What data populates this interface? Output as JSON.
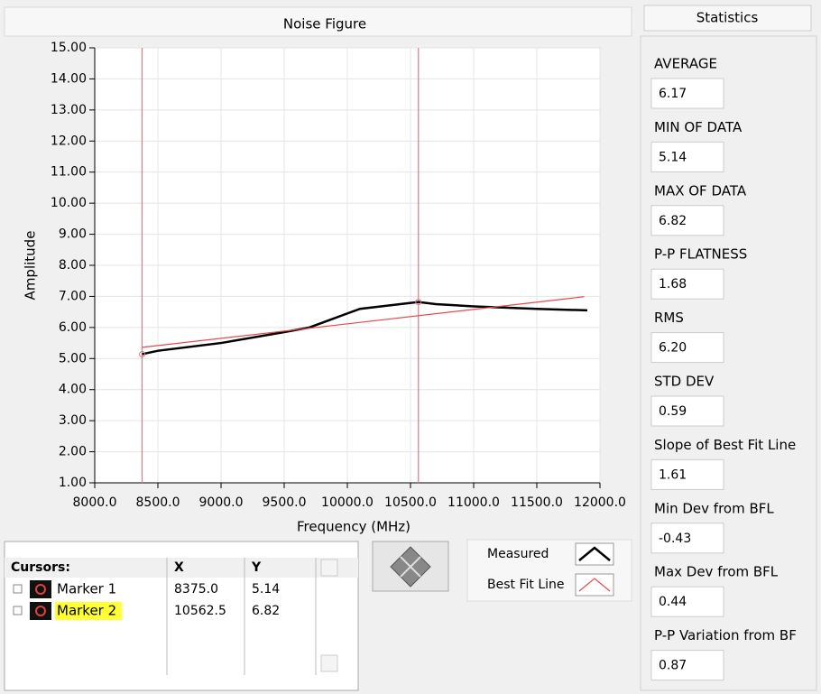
{
  "chart_data": {
    "type": "line",
    "title": "Noise Figure",
    "x_label": "Frequency (MHz)",
    "y_label": "Amplitude",
    "xlim": [
      8000,
      12000
    ],
    "xticks": [
      {
        "value": 8000,
        "label": "8000.0"
      },
      {
        "value": 8500,
        "label": "8500.0"
      },
      {
        "value": 9000,
        "label": "9000.0"
      },
      {
        "value": 9500,
        "label": "9500.0"
      },
      {
        "value": 10000,
        "label": "10000.0"
      },
      {
        "value": 10500,
        "label": "10500.0"
      },
      {
        "value": 11000,
        "label": "11000.0"
      },
      {
        "value": 11500,
        "label": "11500.0"
      },
      {
        "value": 12000,
        "label": "12000.0"
      }
    ],
    "ylim": [
      1,
      15
    ],
    "yticks": [
      {
        "value": 1,
        "label": "1.00"
      },
      {
        "value": 2,
        "label": "2.00"
      },
      {
        "value": 3,
        "label": "3.00"
      },
      {
        "value": 4,
        "label": "4.00"
      },
      {
        "value": 5,
        "label": "5.00"
      },
      {
        "value": 6,
        "label": "6.00"
      },
      {
        "value": 7,
        "label": "7.00"
      },
      {
        "value": 8,
        "label": "8.00"
      },
      {
        "value": 9,
        "label": "9.00"
      },
      {
        "value": 10,
        "label": "10.00"
      },
      {
        "value": 11,
        "label": "11.00"
      },
      {
        "value": 12,
        "label": "12.00"
      },
      {
        "value": 13,
        "label": "13.00"
      },
      {
        "value": 14,
        "label": "14.00"
      },
      {
        "value": 15,
        "label": "15.00"
      }
    ],
    "grid": true,
    "series": [
      {
        "name": "Measured",
        "color": "#000000",
        "x": [
          8375,
          8500,
          9000,
          9500,
          9700,
          10100,
          10562.5,
          10700,
          11000,
          11500,
          11900
        ],
        "values": [
          5.14,
          5.25,
          5.5,
          5.85,
          6.0,
          6.6,
          6.82,
          6.75,
          6.68,
          6.6,
          6.55
        ]
      },
      {
        "name": "Best Fit Line",
        "color": "#e8484a",
        "x": [
          8375,
          11875
        ],
        "values": [
          5.36,
          6.99
        ]
      }
    ],
    "cursors": {
      "title": "Cursors:",
      "x_header": "X",
      "y_header": "Y",
      "color": "#e07a88",
      "names": [
        "Marker 1",
        "Marker 2"
      ],
      "x": [
        8375,
        10562.5
      ],
      "x_labels": [
        "8375.0",
        "10562.5"
      ],
      "y": [
        5.14,
        6.82
      ]
    }
  },
  "statistics": {
    "title": "Statistics",
    "items": [
      {
        "label": "AVERAGE",
        "value": "6.17"
      },
      {
        "label": "MIN OF DATA",
        "value": "5.14"
      },
      {
        "label": "MAX OF DATA",
        "value": "6.82"
      },
      {
        "label": "P-P FLATNESS",
        "value": "1.68"
      },
      {
        "label": "RMS",
        "value": "6.20"
      },
      {
        "label": "STD DEV",
        "value": "0.59"
      },
      {
        "label": "Slope of Best Fit Line",
        "value": "1.61"
      },
      {
        "label": "Min Dev from BFL",
        "value": "-0.43"
      },
      {
        "label": "Max Dev from BFL",
        "value": "0.44"
      },
      {
        "label": "P-P Variation from BF",
        "value": "0.87"
      }
    ]
  }
}
